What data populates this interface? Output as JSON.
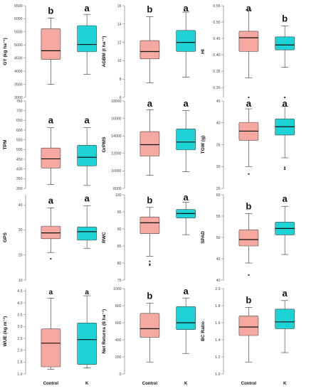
{
  "colors": {
    "control": "#f6a9a1",
    "k": "#1ed3d6"
  },
  "chart_data": [
    {
      "type": "box",
      "ylabel": "GY (kg ha⁻¹)",
      "yticks": [
        3000,
        3500,
        4000,
        4500,
        5000,
        5500,
        6000,
        6500
      ],
      "ylim": [
        3000,
        6500
      ],
      "categories": [
        "Control",
        "K"
      ],
      "boxes": [
        {
          "min": 3500,
          "q1": 4450,
          "median": 4780,
          "q3": 5620,
          "max": 6030,
          "letter": "b"
        },
        {
          "min": 3880,
          "q1": 4740,
          "median": 5020,
          "q3": 5740,
          "max": 6170,
          "letter": "a"
        }
      ]
    },
    {
      "type": "box",
      "ylabel": "AGBM (t ha⁻¹)",
      "yticks": [
        6,
        8,
        10,
        12,
        14,
        16
      ],
      "ylim": [
        6,
        16
      ],
      "categories": [
        "Control",
        "K"
      ],
      "boxes": [
        {
          "min": 7.6,
          "q1": 10.2,
          "median": 11.0,
          "q3": 12.2,
          "max": 14.8,
          "letter": "b"
        },
        {
          "min": 8.2,
          "q1": 11.0,
          "median": 12.0,
          "q3": 13.3,
          "max": 15.3,
          "letter": "a"
        }
      ]
    },
    {
      "type": "box",
      "ylabel": "HI",
      "yticks": [
        0.3,
        0.35,
        0.4,
        0.45,
        0.5,
        0.55
      ],
      "ylim": [
        0.27,
        0.55
      ],
      "categories": [
        "Control",
        "K"
      ],
      "boxes": [
        {
          "min": 0.33,
          "q1": 0.41,
          "median": 0.452,
          "q3": 0.472,
          "max": 0.537,
          "letter": "a",
          "outliers": [
            0.27
          ]
        },
        {
          "min": 0.362,
          "q1": 0.415,
          "median": 0.43,
          "q3": 0.455,
          "max": 0.488,
          "letter": "b",
          "outliers": [
            0.27
          ]
        }
      ]
    },
    {
      "type": "box",
      "ylabel": "TPM",
      "yticks": [
        300,
        350,
        400,
        450,
        500,
        550,
        600,
        650,
        700,
        750
      ],
      "ylim": [
        300,
        750
      ],
      "categories": [
        "Control",
        "K"
      ],
      "boxes": [
        {
          "min": 320,
          "q1": 405,
          "median": 452,
          "q3": 508,
          "max": 612,
          "letter": "a"
        },
        {
          "min": 315,
          "q1": 416,
          "median": 460,
          "q3": 522,
          "max": 612,
          "letter": "a"
        }
      ]
    },
    {
      "type": "box",
      "ylabel": "GrPMS",
      "yticks": [
        8000,
        10000,
        12000,
        14000,
        16000,
        18000
      ],
      "ylim": [
        8000,
        18000
      ],
      "categories": [
        "Control",
        "K"
      ],
      "boxes": [
        {
          "min": 9500,
          "q1": 11700,
          "median": 13000,
          "q3": 14500,
          "max": 17000,
          "letter": "a"
        },
        {
          "min": 9900,
          "q1": 12400,
          "median": 13300,
          "q3": 14800,
          "max": 16900,
          "letter": "a"
        }
      ]
    },
    {
      "type": "box",
      "ylabel": "TGW (g)",
      "yticks": [
        25,
        30,
        35,
        40,
        45
      ],
      "ylim": [
        25,
        45
      ],
      "categories": [
        "Control",
        "K"
      ],
      "boxes": [
        {
          "min": 30.0,
          "q1": 36.0,
          "median": 38.1,
          "q3": 40.1,
          "max": 43.2,
          "letter": "a",
          "outliers": [
            28.3
          ]
        },
        {
          "min": 32.0,
          "q1": 37.2,
          "median": 39.1,
          "q3": 40.9,
          "max": 43.8,
          "letter": "a",
          "outliers": [
            29.8,
            29.4
          ]
        }
      ]
    },
    {
      "type": "box",
      "ylabel": "GPS",
      "yticks": [
        10,
        20,
        30,
        40
      ],
      "ylim": [
        10,
        44
      ],
      "categories": [
        "Control",
        "K"
      ],
      "boxes": [
        {
          "min": 21.0,
          "q1": 26.5,
          "median": 28.8,
          "q3": 31.5,
          "max": 38.8,
          "letter": "a",
          "outliers": [
            18.5
          ]
        },
        {
          "min": 22.7,
          "q1": 25.9,
          "median": 29.3,
          "q3": 31.2,
          "max": 39.6,
          "letter": "a"
        }
      ]
    },
    {
      "type": "box",
      "ylabel": "RWC",
      "yticks": [
        75,
        80,
        85,
        90,
        95,
        100
      ],
      "ylim": [
        75,
        100
      ],
      "categories": [
        "Control",
        "K"
      ],
      "boxes": [
        {
          "min": 82.0,
          "q1": 88.6,
          "median": 91.8,
          "q3": 93.5,
          "max": 96.3,
          "letter": "b",
          "outliers": [
            80.5,
            79.7,
            79.4
          ]
        },
        {
          "min": 88.3,
          "q1": 93.2,
          "median": 94.5,
          "q3": 95.7,
          "max": 97.8,
          "letter": "a"
        }
      ]
    },
    {
      "type": "box",
      "ylabel": "SPAD",
      "yticks": [
        40,
        45,
        50,
        55,
        60
      ],
      "ylim": [
        40,
        60
      ],
      "categories": [
        "Control",
        "K"
      ],
      "boxes": [
        {
          "min": 44.0,
          "q1": 48.0,
          "median": 49.5,
          "q3": 51.8,
          "max": 55.6,
          "letter": "b",
          "outliers": [
            41.2
          ]
        },
        {
          "min": 46.0,
          "q1": 50.6,
          "median": 52.1,
          "q3": 53.6,
          "max": 57.3,
          "letter": "a"
        }
      ]
    },
    {
      "type": "box",
      "ylabel": "WUE (kg m⁻³)",
      "yticks": [
        1.0,
        1.5,
        2.0,
        2.5,
        3.0,
        3.5,
        4.0,
        4.5
      ],
      "ylim": [
        1.0,
        4.6
      ],
      "categories": [
        "Control",
        "K"
      ],
      "boxes": [
        {
          "min": 1.2,
          "q1": 1.3,
          "median": 2.3,
          "q3": 2.9,
          "max": 4.2,
          "letter": "a"
        },
        {
          "min": 1.25,
          "q1": 1.4,
          "median": 2.45,
          "q3": 3.15,
          "max": 4.3,
          "letter": "a"
        }
      ]
    },
    {
      "type": "box",
      "ylabel": "Net Returns ($ ha⁻¹)",
      "yticks": [
        0,
        200,
        400,
        600,
        800,
        1000
      ],
      "ylim": [
        0,
        1000
      ],
      "categories": [
        "Control",
        "K"
      ],
      "boxes": [
        {
          "min": 140,
          "q1": 430,
          "median": 530,
          "q3": 710,
          "max": 830,
          "letter": "b"
        },
        {
          "min": 240,
          "q1": 520,
          "median": 600,
          "q3": 790,
          "max": 890,
          "letter": "a"
        }
      ]
    },
    {
      "type": "box",
      "ylabel": "BC Ratio",
      "yticks": [
        1.0,
        1.2,
        1.4,
        1.6,
        1.8,
        2.0
      ],
      "ylim": [
        1.0,
        2.0
      ],
      "categories": [
        "Control",
        "K"
      ],
      "boxes": [
        {
          "min": 1.14,
          "q1": 1.45,
          "median": 1.55,
          "q3": 1.68,
          "max": 1.78,
          "letter": "b"
        },
        {
          "min": 1.25,
          "q1": 1.53,
          "median": 1.61,
          "q3": 1.76,
          "max": 1.86,
          "letter": "a"
        }
      ]
    }
  ]
}
